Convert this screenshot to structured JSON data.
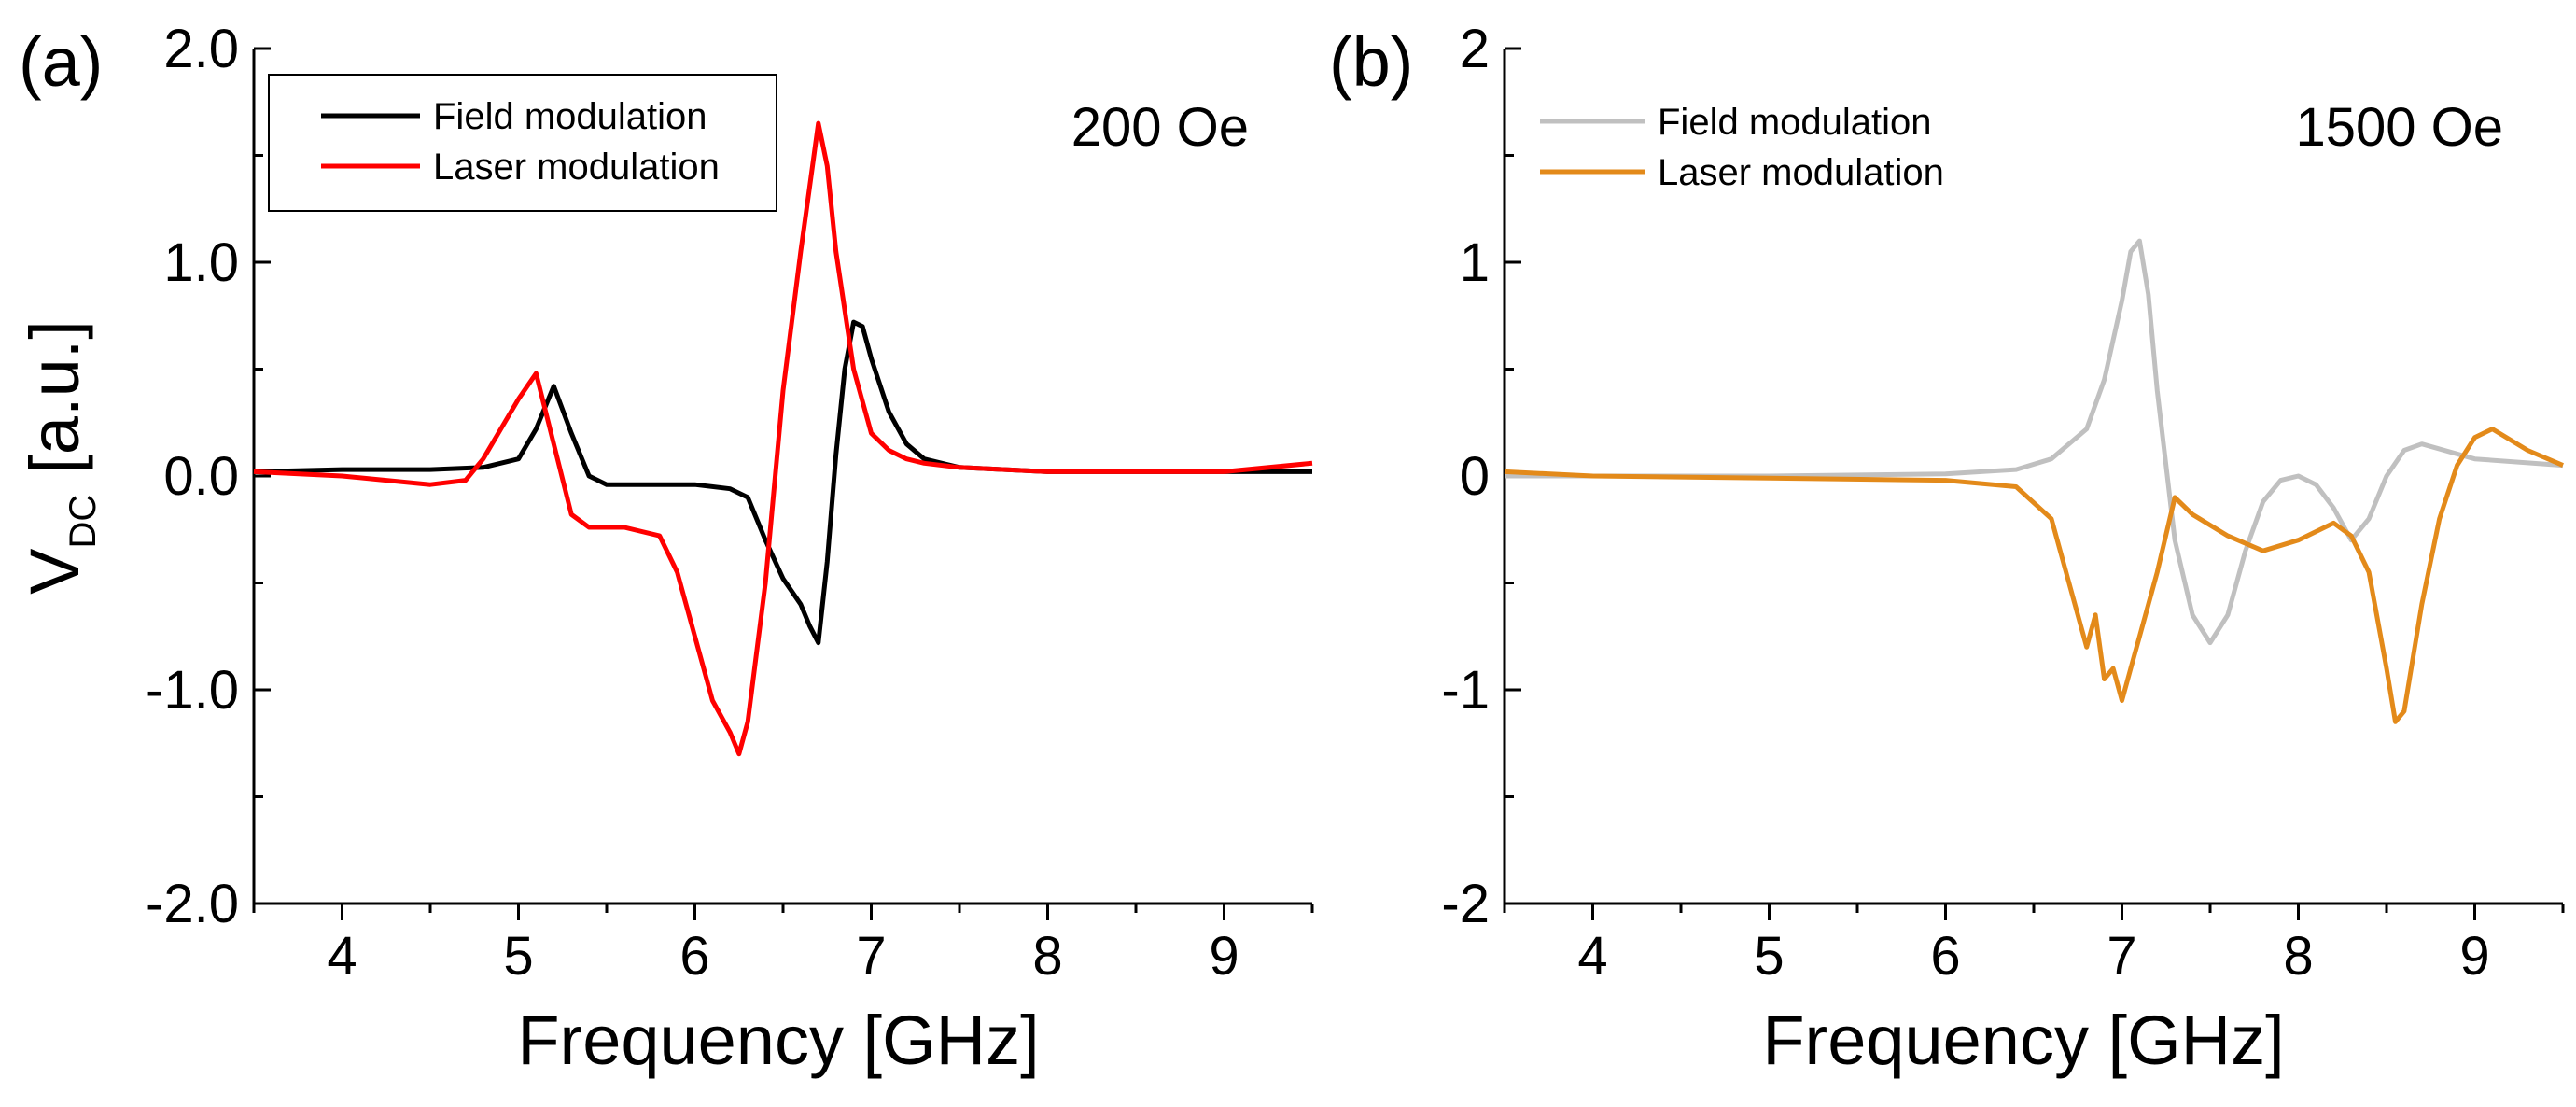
{
  "figure": {
    "ylabel_main": "V",
    "ylabel_sub": "DC",
    "ylabel_unit": "[a.u.]"
  },
  "chart_data": [
    {
      "type": "line",
      "panel_label": "(a)",
      "annotation": "200 Oe",
      "xlabel": "Frequency [GHz]",
      "ylabel": "V_DC [a.u.]",
      "xlim": [
        3.5,
        9.5
      ],
      "ylim": [
        -2.0,
        2.0
      ],
      "xticks": [
        4,
        5,
        6,
        7,
        8,
        9
      ],
      "xtick_labels": [
        "4",
        "5",
        "6",
        "7",
        "8",
        "9"
      ],
      "yticks": [
        -2.0,
        -1.0,
        0.0,
        1.0,
        2.0
      ],
      "ytick_labels": [
        "-2.0",
        "-1.0",
        "0.0",
        "1.0",
        "2.0"
      ],
      "legend_position": "top-left",
      "series": [
        {
          "name": "Field modulation",
          "color": "#000000",
          "x": [
            3.5,
            4.0,
            4.5,
            4.8,
            5.0,
            5.1,
            5.2,
            5.3,
            5.4,
            5.5,
            5.8,
            6.0,
            6.2,
            6.3,
            6.4,
            6.5,
            6.6,
            6.65,
            6.7,
            6.75,
            6.8,
            6.85,
            6.9,
            6.95,
            7.0,
            7.1,
            7.2,
            7.3,
            7.5,
            8.0,
            8.5,
            9.0,
            9.5
          ],
          "y": [
            0.02,
            0.03,
            0.03,
            0.04,
            0.08,
            0.22,
            0.42,
            0.2,
            0.0,
            -0.04,
            -0.04,
            -0.04,
            -0.06,
            -0.1,
            -0.3,
            -0.48,
            -0.6,
            -0.7,
            -0.78,
            -0.4,
            0.1,
            0.5,
            0.72,
            0.7,
            0.55,
            0.3,
            0.15,
            0.08,
            0.04,
            0.02,
            0.02,
            0.02,
            0.02
          ]
        },
        {
          "name": "Laser modulation",
          "color": "#ff0000",
          "x": [
            3.5,
            4.0,
            4.5,
            4.7,
            4.8,
            4.9,
            5.0,
            5.1,
            5.2,
            5.3,
            5.4,
            5.6,
            5.8,
            5.9,
            6.0,
            6.1,
            6.2,
            6.25,
            6.3,
            6.4,
            6.5,
            6.6,
            6.65,
            6.7,
            6.75,
            6.8,
            6.9,
            7.0,
            7.1,
            7.2,
            7.3,
            7.5,
            8.0,
            8.5,
            9.0,
            9.5
          ],
          "y": [
            0.02,
            0.0,
            -0.04,
            -0.02,
            0.08,
            0.22,
            0.36,
            0.48,
            0.15,
            -0.18,
            -0.24,
            -0.24,
            -0.28,
            -0.45,
            -0.75,
            -1.05,
            -1.2,
            -1.3,
            -1.15,
            -0.5,
            0.4,
            1.05,
            1.35,
            1.65,
            1.45,
            1.05,
            0.5,
            0.2,
            0.12,
            0.08,
            0.06,
            0.04,
            0.02,
            0.02,
            0.02,
            0.06
          ]
        }
      ]
    },
    {
      "type": "line",
      "panel_label": "(b)",
      "annotation": "1500 Oe",
      "xlabel": "Frequency [GHz]",
      "ylabel": "",
      "xlim": [
        3.5,
        9.5
      ],
      "ylim": [
        -2,
        2
      ],
      "xticks": [
        4,
        5,
        6,
        7,
        8,
        9
      ],
      "xtick_labels": [
        "4",
        "5",
        "6",
        "7",
        "8",
        "9"
      ],
      "yticks": [
        -2,
        -1,
        0,
        1,
        2
      ],
      "ytick_labels": [
        "-2",
        "-1",
        "0",
        "1",
        "2"
      ],
      "legend_position": "top-left",
      "series": [
        {
          "name": "Field modulation",
          "color": "#c0c0c0",
          "x": [
            3.5,
            4.0,
            5.0,
            6.0,
            6.4,
            6.6,
            6.8,
            6.9,
            7.0,
            7.05,
            7.1,
            7.15,
            7.2,
            7.3,
            7.4,
            7.5,
            7.6,
            7.7,
            7.8,
            7.9,
            8.0,
            8.1,
            8.2,
            8.3,
            8.4,
            8.5,
            8.6,
            8.7,
            9.0,
            9.5
          ],
          "y": [
            0.0,
            0.0,
            0.0,
            0.01,
            0.03,
            0.08,
            0.22,
            0.45,
            0.82,
            1.05,
            1.1,
            0.85,
            0.4,
            -0.3,
            -0.65,
            -0.78,
            -0.65,
            -0.35,
            -0.12,
            -0.02,
            0.0,
            -0.04,
            -0.15,
            -0.3,
            -0.2,
            0.0,
            0.12,
            0.15,
            0.08,
            0.05
          ]
        },
        {
          "name": "Laser modulation",
          "color": "#e38a1a",
          "x": [
            3.5,
            4.0,
            5.0,
            6.0,
            6.4,
            6.6,
            6.7,
            6.8,
            6.85,
            6.9,
            6.95,
            7.0,
            7.05,
            7.1,
            7.2,
            7.3,
            7.4,
            7.6,
            7.8,
            8.0,
            8.2,
            8.3,
            8.4,
            8.5,
            8.55,
            8.6,
            8.7,
            8.8,
            8.9,
            9.0,
            9.1,
            9.3,
            9.5
          ],
          "y": [
            0.02,
            0.0,
            -0.01,
            -0.02,
            -0.05,
            -0.2,
            -0.5,
            -0.8,
            -0.65,
            -0.95,
            -0.9,
            -1.05,
            -0.9,
            -0.75,
            -0.45,
            -0.1,
            -0.18,
            -0.28,
            -0.35,
            -0.3,
            -0.22,
            -0.28,
            -0.45,
            -0.9,
            -1.15,
            -1.1,
            -0.6,
            -0.2,
            0.05,
            0.18,
            0.22,
            0.12,
            0.05
          ]
        }
      ]
    }
  ]
}
